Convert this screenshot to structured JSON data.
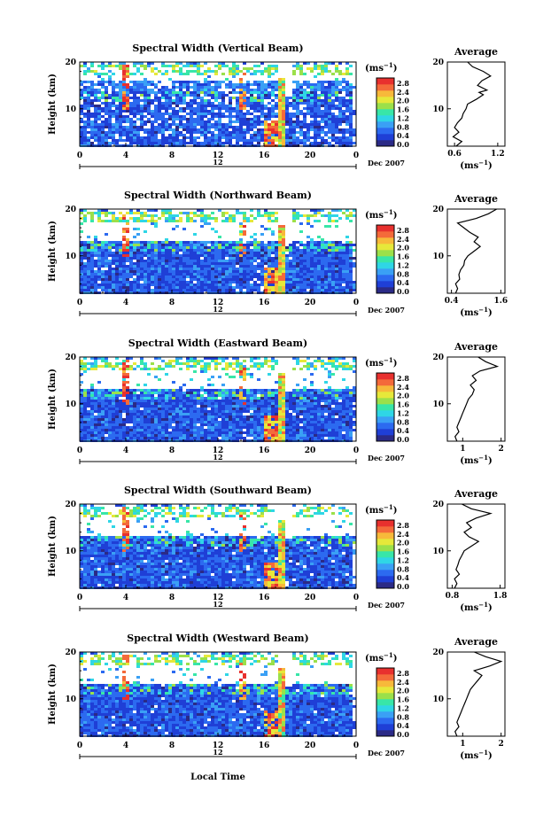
{
  "figure": {
    "xlabel": "Local Time",
    "date_label": "Dec 2007",
    "day_marker": "12"
  },
  "colorbar": {
    "unit": "(ms",
    "unit_sup": "−1",
    "unit_close": ")",
    "ticks": [
      "2.8",
      "2.4",
      "2.0",
      "1.6",
      "1.2",
      "0.8",
      "0.4",
      "0.0"
    ],
    "colors": [
      "#2b2a86",
      "#1f3fd6",
      "#2c6af0",
      "#3aa0f5",
      "#2fd6e6",
      "#38e6a8",
      "#9be04a",
      "#e6e83a",
      "#f7b93a",
      "#f46a3a",
      "#e8302e"
    ]
  },
  "chart_data": [
    {
      "type": "heatmap",
      "title": "Spectral Width (Vertical Beam)",
      "ylabel": "Height (km)",
      "x_ticks": [
        "0",
        "4",
        "8",
        "12",
        "16",
        "20",
        "0"
      ],
      "y_ticks": [
        "20",
        "10"
      ],
      "xlim": [
        0,
        24
      ],
      "ylim": [
        2,
        20
      ],
      "avg": {
        "title": "Average",
        "xlabel": "(ms",
        "xlabel_sup": "−1",
        "xlabel_close": ")",
        "x_ticks": [
          "0.6",
          "1.2"
        ],
        "xlim": [
          0.5,
          1.3
        ],
        "profile": [
          [
            0.62,
            2
          ],
          [
            0.7,
            3
          ],
          [
            0.58,
            4
          ],
          [
            0.66,
            5
          ],
          [
            0.6,
            6
          ],
          [
            0.64,
            7
          ],
          [
            0.7,
            8
          ],
          [
            0.72,
            9
          ],
          [
            0.76,
            10
          ],
          [
            0.78,
            11
          ],
          [
            0.9,
            12
          ],
          [
            1.0,
            13
          ],
          [
            0.94,
            13.5
          ],
          [
            1.05,
            14
          ],
          [
            0.92,
            15
          ],
          [
            0.98,
            16
          ],
          [
            1.1,
            17
          ],
          [
            1.0,
            18
          ],
          [
            0.85,
            19
          ],
          [
            0.78,
            20
          ]
        ]
      }
    },
    {
      "type": "heatmap",
      "title": "Spectral Width (Northward Beam)",
      "ylabel": "Height (km)",
      "x_ticks": [
        "0",
        "4",
        "8",
        "12",
        "16",
        "20",
        "0"
      ],
      "y_ticks": [
        "20",
        "10"
      ],
      "xlim": [
        0,
        24
      ],
      "ylim": [
        2,
        20
      ],
      "avg": {
        "title": "Average",
        "xlabel": "(ms",
        "xlabel_sup": "−1",
        "xlabel_close": ")",
        "x_ticks": [
          "0.4",
          "1.6"
        ],
        "xlim": [
          0.3,
          1.7
        ],
        "profile": [
          [
            0.5,
            2
          ],
          [
            0.55,
            3
          ],
          [
            0.5,
            4
          ],
          [
            0.6,
            5
          ],
          [
            0.58,
            6
          ],
          [
            0.62,
            7
          ],
          [
            0.7,
            8
          ],
          [
            0.72,
            9
          ],
          [
            0.8,
            10
          ],
          [
            0.95,
            11
          ],
          [
            1.1,
            12
          ],
          [
            0.95,
            13
          ],
          [
            1.05,
            14
          ],
          [
            0.85,
            15
          ],
          [
            0.7,
            16
          ],
          [
            0.55,
            17
          ],
          [
            1.0,
            18
          ],
          [
            1.3,
            19
          ],
          [
            1.5,
            20
          ]
        ]
      }
    },
    {
      "type": "heatmap",
      "title": "Spectral Width (Eastward Beam)",
      "ylabel": "Height (km)",
      "x_ticks": [
        "0",
        "4",
        "8",
        "12",
        "16",
        "20",
        "0"
      ],
      "y_ticks": [
        "20",
        "10"
      ],
      "xlim": [
        0,
        24
      ],
      "ylim": [
        2,
        20
      ],
      "avg": {
        "title": "Average",
        "xlabel": "(ms",
        "xlabel_sup": "−1",
        "xlabel_close": ")",
        "x_ticks": [
          "1",
          "2"
        ],
        "xlim": [
          0.6,
          2.1
        ],
        "profile": [
          [
            0.85,
            2
          ],
          [
            0.8,
            3
          ],
          [
            0.9,
            4
          ],
          [
            0.85,
            5
          ],
          [
            0.9,
            6
          ],
          [
            0.95,
            7
          ],
          [
            1.0,
            8
          ],
          [
            1.05,
            9
          ],
          [
            1.1,
            10
          ],
          [
            1.15,
            11
          ],
          [
            1.25,
            12
          ],
          [
            1.3,
            13
          ],
          [
            1.2,
            14
          ],
          [
            1.35,
            15
          ],
          [
            1.25,
            16
          ],
          [
            1.45,
            17
          ],
          [
            1.9,
            18
          ],
          [
            1.6,
            19
          ],
          [
            1.4,
            20
          ]
        ]
      }
    },
    {
      "type": "heatmap",
      "title": "Spectral Width (Southward Beam)",
      "ylabel": "Height (km)",
      "x_ticks": [
        "0",
        "4",
        "8",
        "12",
        "16",
        "20",
        "0"
      ],
      "y_ticks": [
        "20",
        "10"
      ],
      "xlim": [
        0,
        24
      ],
      "ylim": [
        2,
        20
      ],
      "avg": {
        "title": "Average",
        "xlabel": "(ms",
        "xlabel_sup": "−1",
        "xlabel_close": ")",
        "x_ticks": [
          "0.8",
          "1.8"
        ],
        "xlim": [
          0.7,
          1.9
        ],
        "profile": [
          [
            0.85,
            2
          ],
          [
            0.9,
            3
          ],
          [
            0.85,
            4
          ],
          [
            0.95,
            5
          ],
          [
            0.88,
            6
          ],
          [
            0.92,
            7
          ],
          [
            0.95,
            8
          ],
          [
            1.0,
            9
          ],
          [
            1.05,
            10
          ],
          [
            1.2,
            11
          ],
          [
            1.35,
            12
          ],
          [
            1.15,
            13
          ],
          [
            1.05,
            14
          ],
          [
            1.2,
            15
          ],
          [
            1.1,
            16
          ],
          [
            1.3,
            17
          ],
          [
            1.6,
            18
          ],
          [
            1.2,
            19
          ],
          [
            1.0,
            20
          ]
        ]
      }
    },
    {
      "type": "heatmap",
      "title": "Spectral Width (Westward Beam)",
      "ylabel": "Height (km)",
      "x_ticks": [
        "0",
        "4",
        "8",
        "12",
        "16",
        "20",
        "0"
      ],
      "y_ticks": [
        "20",
        "10"
      ],
      "xlim": [
        0,
        24
      ],
      "ylim": [
        2,
        20
      ],
      "avg": {
        "title": "Average",
        "xlabel": "(ms",
        "xlabel_sup": "−1",
        "xlabel_close": ")",
        "x_ticks": [
          "1",
          "2"
        ],
        "xlim": [
          0.6,
          2.1
        ],
        "profile": [
          [
            0.85,
            2
          ],
          [
            0.8,
            3
          ],
          [
            0.9,
            4
          ],
          [
            0.85,
            5
          ],
          [
            0.9,
            6
          ],
          [
            0.95,
            7
          ],
          [
            1.0,
            8
          ],
          [
            1.05,
            9
          ],
          [
            1.1,
            10
          ],
          [
            1.15,
            11
          ],
          [
            1.2,
            12
          ],
          [
            1.3,
            13
          ],
          [
            1.4,
            14
          ],
          [
            1.5,
            15
          ],
          [
            1.3,
            16
          ],
          [
            1.7,
            17
          ],
          [
            2.0,
            18
          ],
          [
            1.6,
            19
          ],
          [
            1.3,
            20
          ]
        ]
      }
    }
  ]
}
